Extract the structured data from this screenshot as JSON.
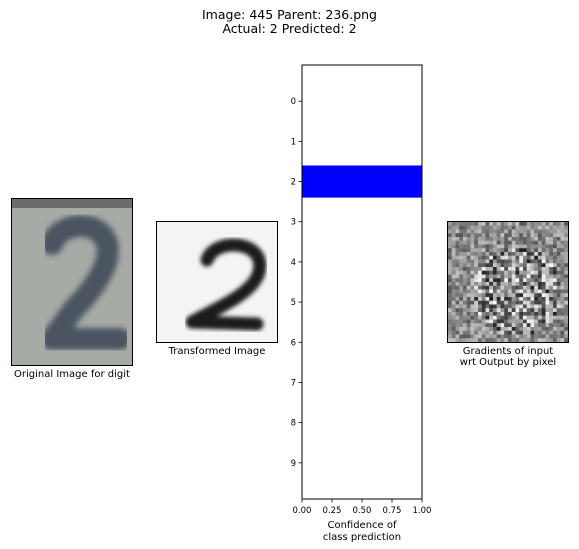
{
  "header": {
    "line1": "Image: 445 Parent: 236.png",
    "line2": "Actual: 2 Predicted: 2"
  },
  "panels": {
    "original": {
      "caption": "Original Image for digit",
      "digit": "2"
    },
    "transformed": {
      "caption": "Transformed Image",
      "digit": "2"
    },
    "gradients": {
      "caption_line1": "Gradients of input",
      "caption_line2": "wrt Output by pixel"
    }
  },
  "chart_data": {
    "type": "bar",
    "orientation": "horizontal",
    "categories": [
      "0",
      "1",
      "2",
      "3",
      "4",
      "5",
      "6",
      "7",
      "8",
      "9"
    ],
    "values": [
      0.0,
      0.0,
      1.0,
      0.0,
      0.0,
      0.0,
      0.0,
      0.0,
      0.0,
      0.0
    ],
    "xlim": [
      0.0,
      1.0
    ],
    "xticks": [
      "0.00",
      "0.25",
      "0.50",
      "0.75",
      "1.00"
    ],
    "xlabel_line1": "Confidence of",
    "xlabel_line2": "class prediction",
    "bar_color": "#0000ff",
    "grid": false
  },
  "colors": {
    "background": "#ffffff",
    "axis": "#000000"
  }
}
